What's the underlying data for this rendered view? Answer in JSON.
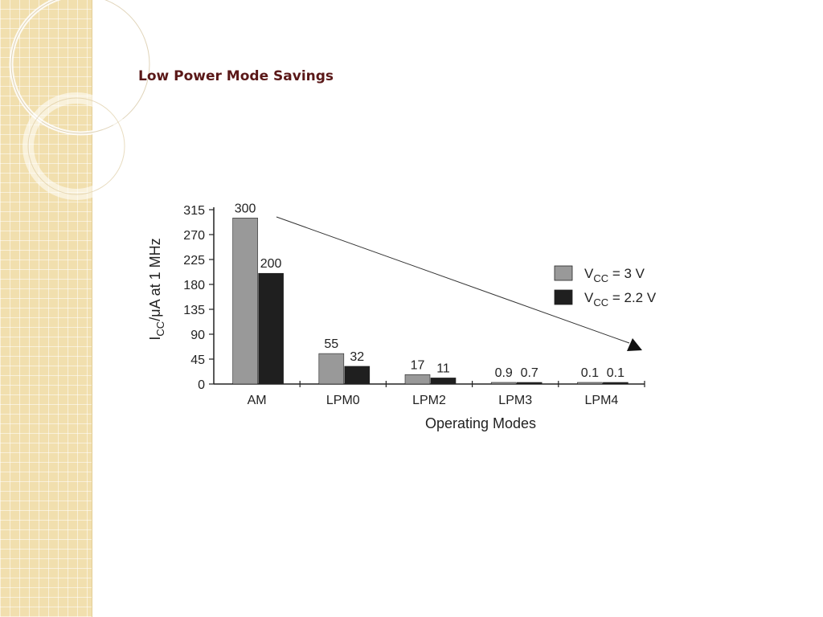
{
  "slide": {
    "title": "Low Power Mode Savings"
  },
  "colors": {
    "series_1": "#999999",
    "series_2": "#1f1f1f",
    "axis": "#222222",
    "band": "#f1dfae",
    "title": "#5a1818"
  },
  "chart_data": {
    "type": "bar",
    "categories": [
      "AM",
      "LPM0",
      "LPM2",
      "LPM3",
      "LPM4"
    ],
    "series": [
      {
        "name": "V_CC = 3 V",
        "label_main": "V",
        "label_sub": "CC",
        "label_rest": " = 3 V",
        "values": [
          300,
          55,
          17,
          0.9,
          0.1
        ],
        "value_labels": [
          "300",
          "55",
          "17",
          "0.9",
          "0.1"
        ]
      },
      {
        "name": "V_CC = 2.2 V",
        "label_main": "V",
        "label_sub": "CC",
        "label_rest": " = 2.2 V",
        "values": [
          200,
          32,
          11,
          0.7,
          0.1
        ],
        "value_labels": [
          "200",
          "32",
          "11",
          "0.7",
          "0.1"
        ]
      }
    ],
    "yticks": [
      0,
      45,
      90,
      135,
      180,
      225,
      270,
      315
    ],
    "ylim": [
      0,
      315
    ],
    "xlabel": "Operating Modes",
    "ylabel": {
      "main": "I",
      "sub": "CC",
      "rest": "/μA at 1 MHz"
    },
    "legend": "right",
    "grid": false,
    "annotation": "downward trend arrow"
  }
}
